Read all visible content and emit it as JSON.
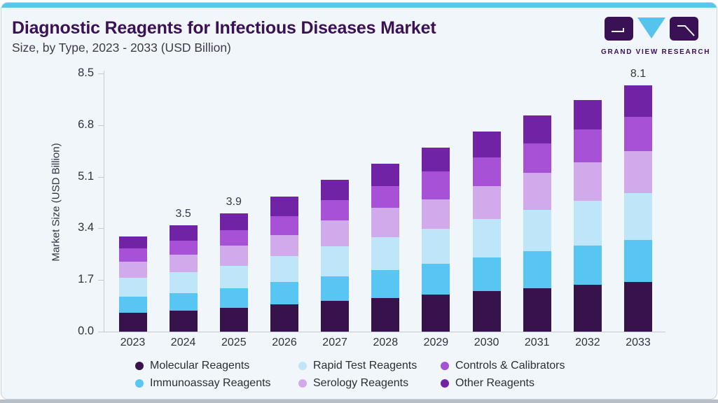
{
  "header": {
    "title": "Diagnostic Reagents for Infectious Diseases Market",
    "subtitle": "Size, by Type, 2023 - 2033 (USD Billion)"
  },
  "logo": {
    "brand": "GRAND VIEW RESEARCH",
    "mark_dark_color": "#3A1155",
    "mark_blue_color": "#55C3EE"
  },
  "accent": {
    "top_strip_color": "#5BC5EF",
    "card_background": "#F1F6FA",
    "card_border": "#CBD5DD",
    "bottom_strip_color": "#B7BEC5"
  },
  "chart_data": {
    "type": "bar",
    "stacked": true,
    "title": "Diagnostic Reagents for Infectious Diseases Market Size, by Type, 2023 - 2033 (USD Billion)",
    "xlabel": "",
    "ylabel": "Market Size (USD Billion)",
    "ylim": [
      0,
      8.5
    ],
    "yticks": [
      "0.0",
      "1.7",
      "3.4",
      "5.1",
      "6.8",
      "8.5"
    ],
    "grid": false,
    "legend_position": "bottom",
    "categories": [
      "2023",
      "2024",
      "2025",
      "2026",
      "2027",
      "2028",
      "2029",
      "2030",
      "2031",
      "2032",
      "2033"
    ],
    "series": [
      {
        "name": "Molecular Reagents",
        "color": "#36134B",
        "values": [
          0.62,
          0.7,
          0.78,
          0.9,
          1.02,
          1.11,
          1.23,
          1.33,
          1.44,
          1.54,
          1.64
        ]
      },
      {
        "name": "Immunoassay Reagents",
        "color": "#58C6F2",
        "values": [
          0.53,
          0.57,
          0.65,
          0.73,
          0.79,
          0.91,
          1.0,
          1.12,
          1.21,
          1.29,
          1.37
        ]
      },
      {
        "name": "Rapid Test Reagents",
        "color": "#BFE6F8",
        "values": [
          0.63,
          0.68,
          0.74,
          0.85,
          1.0,
          1.08,
          1.16,
          1.26,
          1.36,
          1.47,
          1.55
        ]
      },
      {
        "name": "Serology Reagents",
        "color": "#D1AAEC",
        "values": [
          0.52,
          0.58,
          0.66,
          0.69,
          0.85,
          0.97,
          0.96,
          1.08,
          1.21,
          1.27,
          1.39
        ]
      },
      {
        "name": "Controls & Calibrators",
        "color": "#A751D6",
        "values": [
          0.44,
          0.47,
          0.52,
          0.63,
          0.68,
          0.73,
          0.93,
          0.94,
          0.98,
          1.08,
          1.13
        ]
      },
      {
        "name": "Other Reagents",
        "color": "#7023A4",
        "values": [
          0.39,
          0.5,
          0.55,
          0.64,
          0.66,
          0.72,
          0.79,
          0.87,
          0.91,
          0.98,
          1.02
        ]
      }
    ],
    "totals": [
      3.13,
      3.5,
      3.9,
      4.44,
      5.0,
      5.52,
      6.07,
      6.6,
      7.11,
      7.63,
      8.1
    ],
    "bar_labels": [
      "",
      "3.5",
      "3.9",
      "",
      "",
      "",
      "",
      "",
      "",
      "",
      "8.1"
    ],
    "legend_display_order": [
      "Molecular Reagents",
      "Rapid Test Reagents",
      "Controls & Calibrators",
      "Immunoassay Reagents",
      "Serology Reagents",
      "Other Reagents"
    ]
  }
}
